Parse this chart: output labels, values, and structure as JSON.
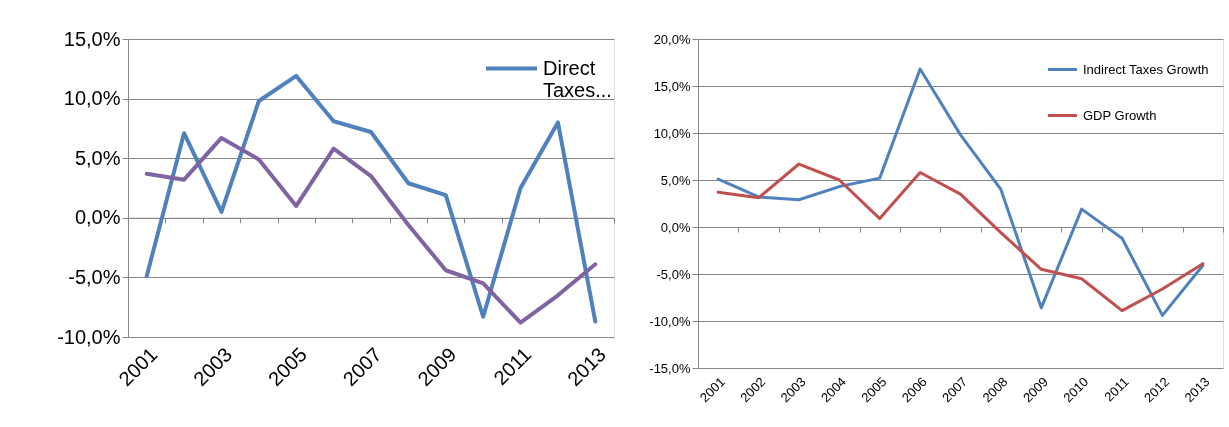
{
  "chart_data": [
    {
      "type": "line",
      "categories": [
        "2001",
        null,
        "2003",
        null,
        "2005",
        null,
        "2007",
        null,
        "2009",
        null,
        "2011",
        null,
        "2013"
      ],
      "ylim": [
        -10,
        15
      ],
      "yticks": [
        {
          "value": -10,
          "label": "-10,0%"
        },
        {
          "value": -5,
          "label": "-5,0%"
        },
        {
          "value": 0,
          "label": "0,0%"
        },
        {
          "value": 5,
          "label": "5,0%"
        },
        {
          "value": 10,
          "label": "10,0%"
        },
        {
          "value": 15,
          "label": "15,0%"
        }
      ],
      "grid": "y",
      "legend": "top right",
      "series": [
        {
          "name": "Direct Taxes...",
          "color": "#4f81bd",
          "values": [
            -4.9,
            7.1,
            0.5,
            9.8,
            11.9,
            8.1,
            7.2,
            2.9,
            1.9,
            -8.3,
            2.5,
            8.0,
            -8.7
          ]
        },
        {
          "color": "#8064a2",
          "values": [
            3.7,
            3.2,
            6.7,
            4.9,
            1.0,
            5.8,
            3.5,
            -0.6,
            -4.4,
            -5.5,
            -8.8,
            -6.5,
            -3.9
          ]
        }
      ]
    },
    {
      "type": "line",
      "categories": [
        "2001",
        "2002",
        "2003",
        "2004",
        "2005",
        "2006",
        "2007",
        "2008",
        "2009",
        "2010",
        "2011",
        "2012",
        "2013"
      ],
      "ylim": [
        -15,
        20
      ],
      "yticks": [
        {
          "value": -15,
          "label": "-15,0%"
        },
        {
          "value": -10,
          "label": "-10,0%"
        },
        {
          "value": -5,
          "label": "-5,0%"
        },
        {
          "value": 0,
          "label": "0,0%"
        },
        {
          "value": 5,
          "label": "5,0%"
        },
        {
          "value": 10,
          "label": "10,0%"
        },
        {
          "value": 15,
          "label": "15,0%"
        },
        {
          "value": 20,
          "label": "20,0%"
        }
      ],
      "grid": "y",
      "legend": "top right",
      "series": [
        {
          "name": "Indirect Taxes Growth",
          "color": "#4f81bd",
          "values": [
            5.1,
            3.2,
            2.9,
            4.3,
            5.2,
            16.8,
            9.8,
            4.0,
            -8.6,
            1.9,
            -1.2,
            -9.4,
            -4.1
          ]
        },
        {
          "name": "GDP Growth",
          "color": "#c0504d",
          "values": [
            3.7,
            3.1,
            6.7,
            5.0,
            0.9,
            5.8,
            3.5,
            -0.6,
            -4.5,
            -5.5,
            -8.9,
            -6.6,
            -3.9
          ]
        }
      ]
    }
  ]
}
